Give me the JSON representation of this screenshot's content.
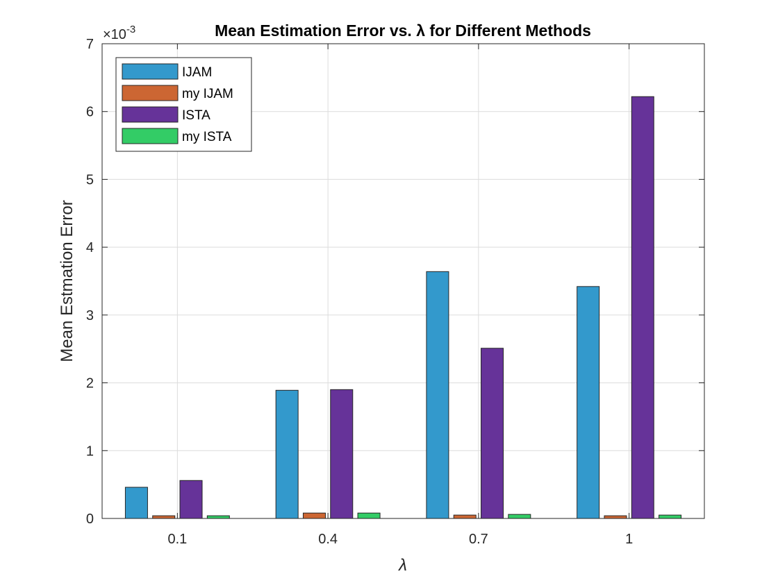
{
  "chart_data": {
    "type": "bar",
    "title": "Mean Estimation Error vs. λ for Different Methods",
    "xlabel": "λ",
    "ylabel": "Mean Estmation Error",
    "y_exponent_label": "×10",
    "y_exponent_power": "-3",
    "categories": [
      "0.1",
      "0.4",
      "0.7",
      "1"
    ],
    "ylim": [
      0,
      7
    ],
    "yticks": [
      "0",
      "1",
      "2",
      "3",
      "4",
      "5",
      "6",
      "7"
    ],
    "series": [
      {
        "name": "IJAM",
        "color": "#3399CC",
        "values": [
          0.46,
          1.89,
          3.64,
          3.42
        ]
      },
      {
        "name": "my IJAM",
        "color": "#CC6633",
        "values": [
          0.04,
          0.08,
          0.05,
          0.04
        ]
      },
      {
        "name": "ISTA",
        "color": "#663399",
        "values": [
          0.56,
          1.9,
          2.51,
          6.22
        ]
      },
      {
        "name": "my ISTA",
        "color": "#33CC66",
        "values": [
          0.04,
          0.08,
          0.06,
          0.05
        ]
      }
    ],
    "grid": true,
    "legend_position": "top-left"
  }
}
